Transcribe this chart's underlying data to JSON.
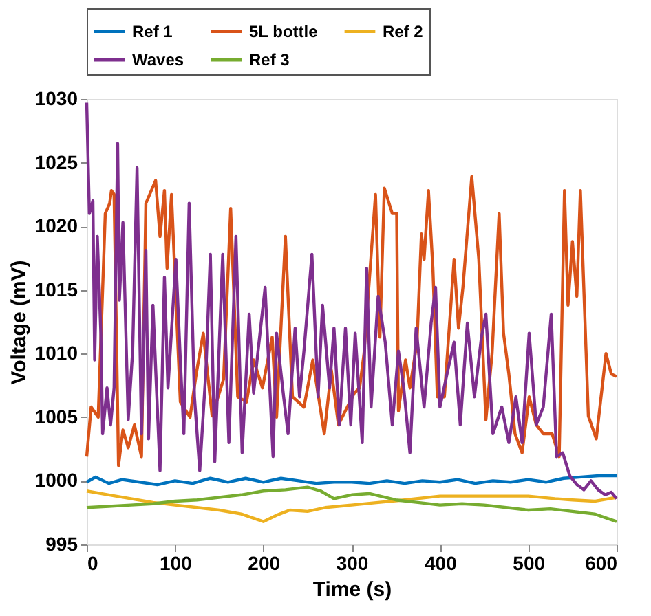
{
  "chart_data": {
    "type": "line",
    "xlabel": "Time (s)",
    "ylabel": "Voltage (mV)",
    "xlim": [
      0,
      600
    ],
    "ylim": [
      995,
      1030
    ],
    "xticks": [
      0,
      100,
      200,
      300,
      400,
      500,
      600
    ],
    "yticks": [
      995,
      1000,
      1005,
      1010,
      1015,
      1020,
      1025,
      1030
    ],
    "grid": false,
    "legend": "top",
    "line_style": "solid",
    "marker": "none",
    "series": [
      {
        "name": "Ref 1",
        "color": "#0072bd",
        "x": [
          0,
          10,
          25,
          40,
          60,
          80,
          100,
          120,
          140,
          160,
          180,
          200,
          220,
          240,
          260,
          280,
          300,
          320,
          340,
          360,
          380,
          400,
          420,
          440,
          460,
          480,
          500,
          520,
          540,
          560,
          580,
          600
        ],
        "values": [
          999.9,
          1000.3,
          999.8,
          1000.1,
          999.9,
          999.7,
          1000,
          999.8,
          1000.2,
          999.9,
          1000.2,
          999.9,
          1000.2,
          1000,
          999.8,
          999.9,
          999.9,
          999.8,
          1000,
          999.8,
          1000,
          999.9,
          1000.1,
          999.8,
          1000,
          999.9,
          1000.1,
          999.9,
          1000.2,
          1000.3,
          1000.4,
          1000.4
        ]
      },
      {
        "name": "5L bottle",
        "color": "#d95319",
        "x": [
          0,
          5,
          13,
          21,
          26,
          28,
          31,
          34,
          36,
          41,
          47,
          54,
          62,
          67,
          78,
          83,
          88,
          91,
          96,
          106,
          117,
          124,
          132,
          142,
          155,
          163,
          171,
          181,
          189,
          199,
          210,
          215,
          225,
          233,
          246,
          256,
          269,
          277,
          285,
          303,
          309,
          314,
          327,
          332,
          337,
          346,
          351,
          353,
          361,
          366,
          374,
          379,
          382,
          387,
          392,
          397,
          405,
          416,
          421,
          426,
          436,
          444,
          452,
          459,
          467,
          472,
          478,
          485,
          493,
          501,
          509,
          517,
          527,
          535,
          541,
          545,
          550,
          555,
          559,
          568,
          577,
          588,
          594,
          600
        ],
        "values": [
          1001.9,
          1005.8,
          1005,
          1021,
          1021.8,
          1022.8,
          1022.5,
          1010,
          1001.2,
          1004,
          1002.6,
          1004.4,
          1001.9,
          1021.8,
          1023.6,
          1019.2,
          1022.8,
          1016.7,
          1022.5,
          1006.2,
          1005,
          1008.4,
          1011.6,
          1005.1,
          1008,
          1021.4,
          1006.6,
          1006.2,
          1009.5,
          1007.3,
          1011.3,
          1005,
          1019.2,
          1006.6,
          1005.8,
          1009.5,
          1003.7,
          1008.7,
          1004.4,
          1006.9,
          1007.3,
          1010,
          1022.5,
          1011.3,
          1023,
          1021,
          1021,
          1005.5,
          1009.5,
          1007.3,
          1010.9,
          1019.4,
          1017.4,
          1022.8,
          1016.7,
          1006.6,
          1006.6,
          1017.4,
          1012,
          1015.2,
          1023.9,
          1017.4,
          1004.8,
          1010,
          1021,
          1011.6,
          1008.4,
          1003.7,
          1002.2,
          1006.6,
          1004.4,
          1003.7,
          1003.7,
          1001.9,
          1022.8,
          1013.8,
          1018.8,
          1014.5,
          1022.8,
          1005.1,
          1003.3,
          1010,
          1008.4,
          1008.2
        ]
      },
      {
        "name": "Ref 2",
        "color": "#edb120",
        "x": [
          0,
          25,
          50,
          75,
          100,
          125,
          150,
          175,
          200,
          215,
          230,
          250,
          270,
          300,
          330,
          360,
          400,
          450,
          500,
          530,
          550,
          575,
          600
        ],
        "values": [
          999.2,
          998.9,
          998.6,
          998.3,
          998.1,
          997.9,
          997.7,
          997.4,
          996.8,
          997.3,
          997.7,
          997.6,
          997.9,
          998.1,
          998.3,
          998.5,
          998.8,
          998.8,
          998.8,
          998.6,
          998.5,
          998.4,
          998.7
        ]
      },
      {
        "name": "Waves",
        "color": "#7e2f8e",
        "x": [
          0,
          3,
          7,
          9,
          12,
          16,
          18,
          23,
          27,
          31,
          35,
          37,
          41,
          47,
          52,
          57,
          62,
          67,
          70,
          75,
          83,
          88,
          92,
          101,
          106,
          110,
          116,
          122,
          128,
          135,
          140,
          145,
          154,
          161,
          169,
          176,
          184,
          189,
          194,
          202,
          211,
          215,
          223,
          228,
          236,
          241,
          246,
          255,
          262,
          267,
          275,
          280,
          286,
          293,
          299,
          304,
          312,
          317,
          322,
          330,
          338,
          346,
          353,
          359,
          366,
          373,
          382,
          390,
          395,
          400,
          408,
          416,
          423,
          431,
          439,
          447,
          452,
          460,
          470,
          478,
          486,
          493,
          501,
          509,
          517,
          526,
          532,
          539,
          547,
          555,
          563,
          571,
          579,
          587,
          594,
          600
        ],
        "values": [
          1029.7,
          1021,
          1022,
          1009.5,
          1019.2,
          1011.6,
          1003.7,
          1007.3,
          1004.4,
          1007.3,
          1026.5,
          1014.2,
          1020.3,
          1004.8,
          1010.2,
          1024.6,
          1003.7,
          1018.1,
          1003.3,
          1013.8,
          1000.8,
          1016,
          1007.3,
          1017.4,
          1009.5,
          1003.7,
          1021.8,
          1006.6,
          1000.8,
          1008.7,
          1017.8,
          1001.5,
          1017.8,
          1003,
          1019.2,
          1002.2,
          1013.1,
          1006.9,
          1010.2,
          1015.2,
          1001.9,
          1011.6,
          1006.6,
          1003.7,
          1012,
          1006.6,
          1010.2,
          1017.8,
          1006.6,
          1013.8,
          1007.3,
          1012,
          1004.4,
          1012,
          1004.4,
          1011.6,
          1003,
          1016.7,
          1005.8,
          1014.5,
          1010.9,
          1004.4,
          1010.2,
          1007.3,
          1002.2,
          1012,
          1005.8,
          1012.4,
          1015.2,
          1005.8,
          1008.4,
          1010.9,
          1004.4,
          1012.4,
          1006.6,
          1011.3,
          1013.1,
          1003.7,
          1005.8,
          1003,
          1006.6,
          1003,
          1011.6,
          1004.4,
          1005.8,
          1013.1,
          1001.9,
          1002.2,
          1000.4,
          999.7,
          999.3,
          1000,
          999.3,
          998.9,
          999.1,
          998.6
        ]
      },
      {
        "name": "Ref 3",
        "color": "#77ac30",
        "x": [
          0,
          25,
          50,
          75,
          100,
          125,
          150,
          175,
          200,
          225,
          250,
          265,
          280,
          300,
          320,
          350,
          375,
          400,
          425,
          450,
          475,
          500,
          525,
          550,
          575,
          600
        ],
        "values": [
          997.9,
          998,
          998.1,
          998.2,
          998.4,
          998.5,
          998.7,
          998.9,
          999.2,
          999.3,
          999.5,
          999.2,
          998.6,
          998.9,
          999,
          998.5,
          998.3,
          998.1,
          998.2,
          998.1,
          997.9,
          997.7,
          997.8,
          997.6,
          997.4,
          996.8
        ]
      }
    ]
  }
}
